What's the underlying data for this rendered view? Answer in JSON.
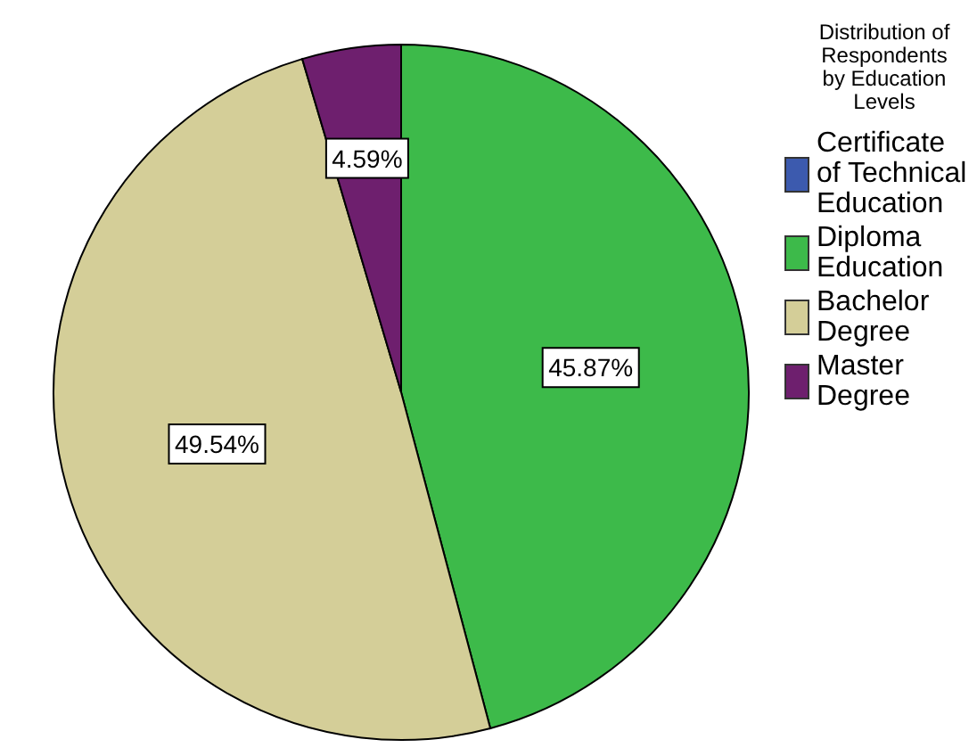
{
  "chart_data": {
    "type": "pie",
    "legend_title": "Distribution of Respondents by Education Levels",
    "categories": [
      "Certificate of Technical Education",
      "Diploma Education",
      "Bachelor Degree",
      "Master Degree"
    ],
    "values": [
      0,
      45.87,
      49.54,
      4.59
    ],
    "colors": [
      "#3c5aae",
      "#3dba4a",
      "#d4ce98",
      "#6e1f6e"
    ],
    "value_labels": [
      null,
      "45.87%",
      "49.54%",
      "4.59%"
    ],
    "legend": "right"
  }
}
